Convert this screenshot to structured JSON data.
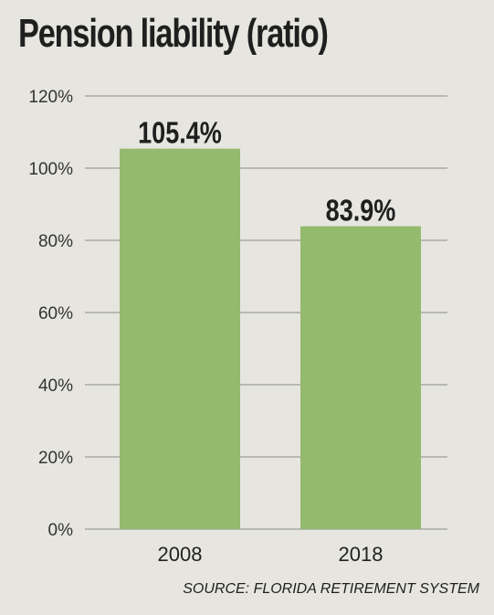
{
  "chart_data": {
    "type": "bar",
    "title": "Pension liability (ratio)",
    "categories": [
      "2008",
      "2018"
    ],
    "values": [
      105.4,
      83.9
    ],
    "value_labels": [
      "105.4%",
      "83.9%"
    ],
    "xlabel": "",
    "ylabel": "",
    "ylim": [
      0,
      120
    ],
    "yticks": [
      "0%",
      "20%",
      "40%",
      "60%",
      "80%",
      "100%",
      "120%"
    ],
    "ytick_values": [
      0,
      20,
      40,
      60,
      80,
      100,
      120
    ],
    "grid": true,
    "bar_color": "#94ba6e",
    "grid_color": "#8a8a8a",
    "source": "SOURCE: FLORIDA RETIREMENT SYSTEM"
  }
}
